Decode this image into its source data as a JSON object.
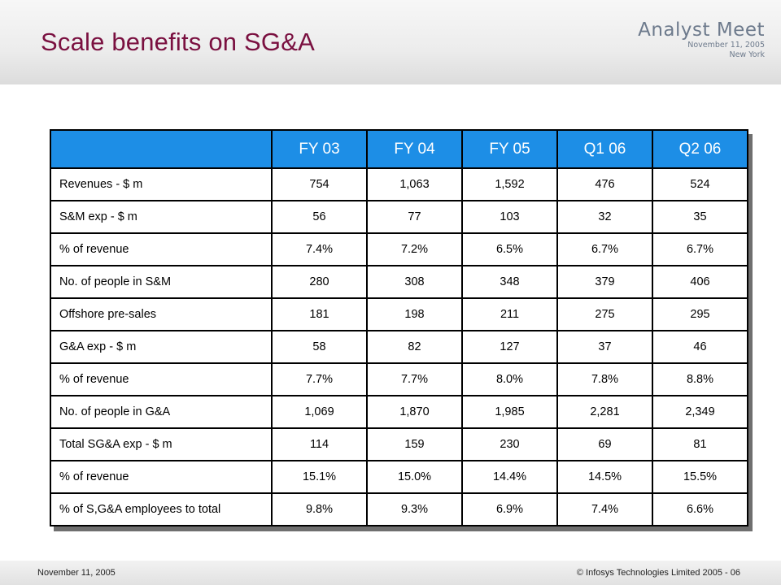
{
  "slide": {
    "title": "Scale benefits on SG&A",
    "branding": {
      "event": "Analyst Meet",
      "date": "November 11, 2005",
      "location": "New York"
    },
    "table": {
      "columns": [
        "",
        "FY 03",
        "FY 04",
        "FY 05",
        "Q1 06",
        "Q2 06"
      ],
      "rows": [
        {
          "label": "Revenues - $ m",
          "values": [
            "754",
            "1,063",
            "1,592",
            "476",
            "524"
          ]
        },
        {
          "label": "S&M exp - $ m",
          "values": [
            "56",
            "77",
            "103",
            "32",
            "35"
          ]
        },
        {
          "label": "% of revenue",
          "values": [
            "7.4%",
            "7.2%",
            "6.5%",
            "6.7%",
            "6.7%"
          ]
        },
        {
          "label": "No. of people in S&M",
          "values": [
            "280",
            "308",
            "348",
            "379",
            "406"
          ]
        },
        {
          "label": "Offshore pre-sales",
          "values": [
            "181",
            "198",
            "211",
            "275",
            "295"
          ]
        },
        {
          "label": "G&A exp - $ m",
          "values": [
            "58",
            "82",
            "127",
            "37",
            "46"
          ]
        },
        {
          "label": "% of revenue",
          "values": [
            "7.7%",
            "7.7%",
            "8.0%",
            "7.8%",
            "8.8%"
          ]
        },
        {
          "label": "No. of people in G&A",
          "values": [
            "1,069",
            "1,870",
            "1,985",
            "2,281",
            "2,349"
          ]
        },
        {
          "label": "Total SG&A exp - $ m",
          "values": [
            "114",
            "159",
            "230",
            "69",
            "81"
          ]
        },
        {
          "label": "% of revenue",
          "values": [
            "15.1%",
            "15.0%",
            "14.4%",
            "14.5%",
            "15.5%"
          ]
        },
        {
          "label": "% of S,G&A employees to total",
          "values": [
            "9.8%",
            "9.3%",
            "6.9%",
            "7.4%",
            "6.6%"
          ]
        }
      ]
    },
    "footer": {
      "date": "November 11, 2005",
      "copyright": "© Infosys Technologies Limited 2005 - 06"
    },
    "colors": {
      "title": "#7a1040",
      "table_header_bg": "#1d8ee6",
      "table_header_text": "#ffffff",
      "branding_text": "#6d7a8c"
    }
  }
}
